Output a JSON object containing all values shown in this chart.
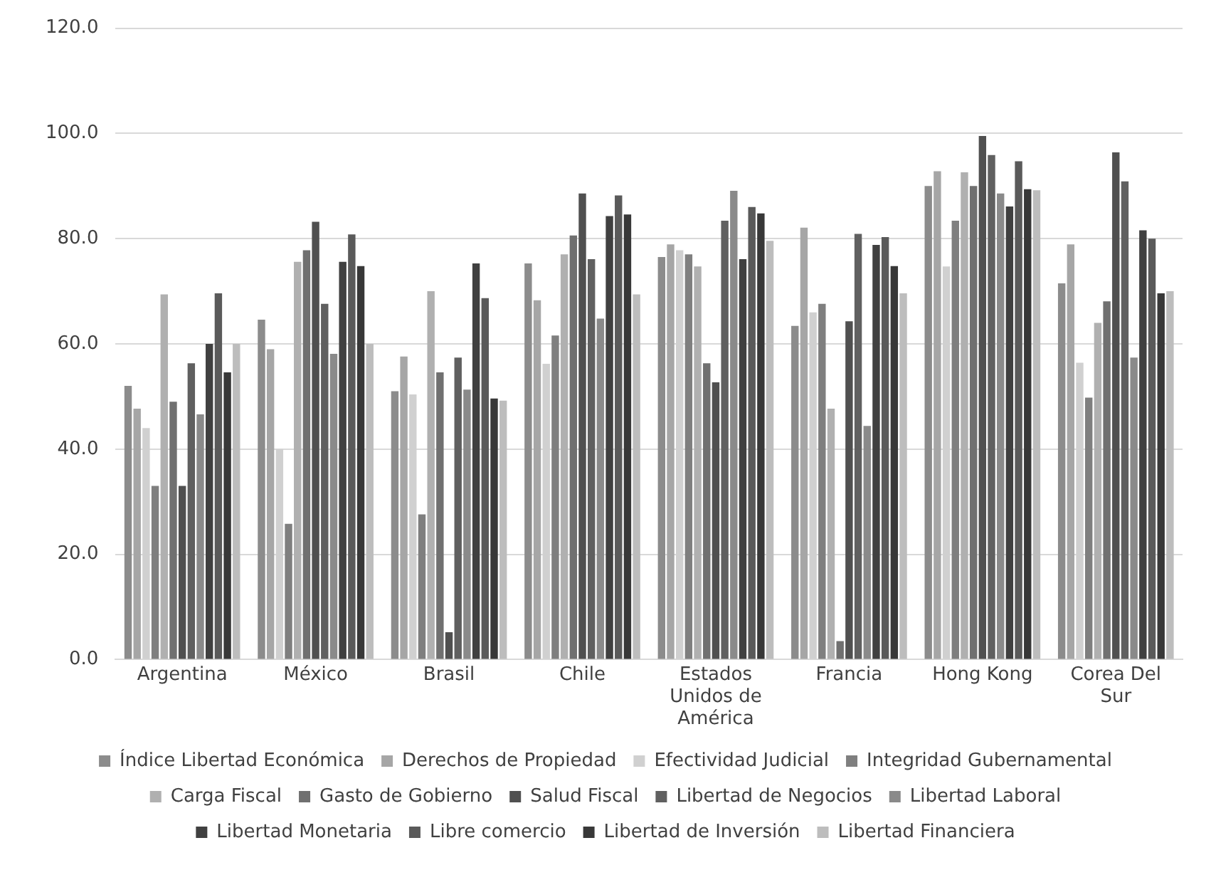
{
  "chart_data": {
    "type": "bar",
    "categories": [
      "Argentina",
      "México",
      "Brasil",
      "Chile",
      "Estados Unidos de América",
      "Francia",
      "Hong Kong",
      "Corea Del Sur"
    ],
    "ylim": [
      0,
      120
    ],
    "yticks": [
      {
        "value": 0,
        "label": "0.0"
      },
      {
        "value": 20,
        "label": "20.0"
      },
      {
        "value": 40,
        "label": "40.0"
      },
      {
        "value": 60,
        "label": "60.0"
      },
      {
        "value": 80,
        "label": "80.0"
      },
      {
        "value": 100,
        "label": "100.0"
      },
      {
        "value": 120,
        "label": "120.0"
      }
    ],
    "grid": "y",
    "legend": "bottom",
    "series": [
      {
        "name": "Índice Libertad Económica",
        "color": "#8c8c8c",
        "values": [
          52,
          64.6,
          51,
          75.3,
          76.5,
          63.4,
          90,
          71.5
        ]
      },
      {
        "name": "Derechos de Propiedad",
        "color": "#a6a6a6",
        "values": [
          47.7,
          59,
          57.6,
          68.3,
          78.9,
          82.1,
          92.8,
          78.9
        ]
      },
      {
        "name": "Efectividad Judicial",
        "color": "#d0d0d0",
        "values": [
          44,
          40,
          50.4,
          56.2,
          77.8,
          66,
          74.7,
          56.4
        ]
      },
      {
        "name": "Integridad Gubernamental",
        "color": "#7f7f7f",
        "values": [
          33,
          25.8,
          27.6,
          61.6,
          77,
          67.6,
          83.4,
          49.8
        ]
      },
      {
        "name": "Carga Fiscal",
        "color": "#b0b0b0",
        "values": [
          69.4,
          75.6,
          70,
          77,
          74.7,
          47.7,
          92.6,
          64
        ]
      },
      {
        "name": "Gasto de Gobierno",
        "color": "#707070",
        "values": [
          49,
          77.8,
          54.6,
          80.6,
          56.3,
          3.5,
          90,
          68.1
        ]
      },
      {
        "name": "Salud Fiscal",
        "color": "#505050",
        "values": [
          33,
          83.2,
          5.2,
          88.6,
          52.7,
          64.3,
          99.5,
          96.4
        ]
      },
      {
        "name": "Libertad de Negocios",
        "color": "#606060",
        "values": [
          56.3,
          67.6,
          57.4,
          76.1,
          83.4,
          80.9,
          95.9,
          90.9
        ]
      },
      {
        "name": "Libertad Laboral",
        "color": "#8a8a8a",
        "values": [
          46.6,
          58.1,
          51.3,
          64.8,
          89.1,
          44.4,
          88.6,
          57.4
        ]
      },
      {
        "name": "Libertad Monetaria",
        "color": "#404040",
        "values": [
          60,
          75.6,
          75.3,
          84.3,
          76.1,
          78.8,
          86.1,
          81.6
        ]
      },
      {
        "name": "Libre comercio",
        "color": "#5a5a5a",
        "values": [
          69.6,
          80.8,
          68.7,
          88.2,
          86,
          80.3,
          94.7,
          80
        ]
      },
      {
        "name": "Libertad de Inversión",
        "color": "#383838",
        "values": [
          54.6,
          74.8,
          49.6,
          84.6,
          84.8,
          74.8,
          89.4,
          69.6
        ]
      },
      {
        "name": "Libertad Financiera",
        "color": "#bdbdbd",
        "values": [
          60,
          60,
          49.2,
          69.4,
          79.6,
          69.6,
          89.2,
          70
        ]
      }
    ]
  }
}
